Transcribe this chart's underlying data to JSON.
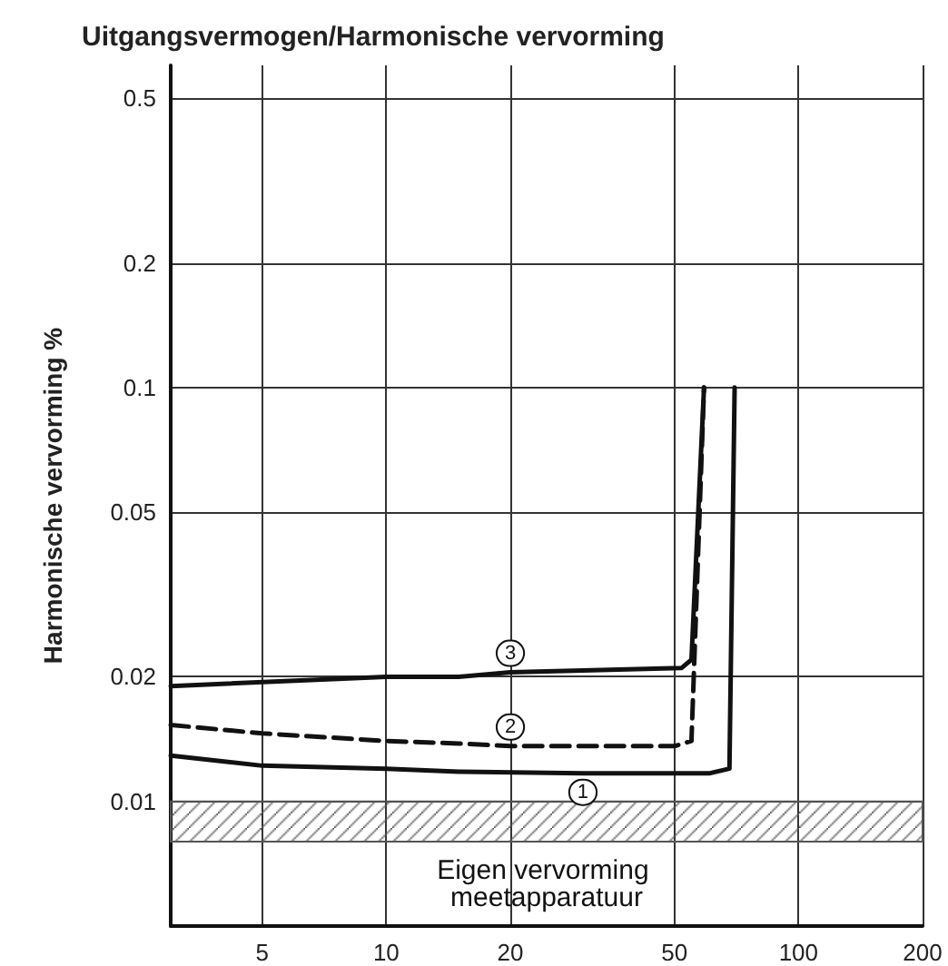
{
  "chart_data": {
    "type": "line",
    "title": "Uitgangsvermogen/Harmonische vervorming",
    "ylabel": "Harmonische vervorming %",
    "log": "xy",
    "xlim": [
      3,
      200
    ],
    "xticks": [
      5,
      10,
      20,
      50,
      100,
      200
    ],
    "ylim": [
      0.005,
      0.6
    ],
    "yticks": [
      0.5,
      0.2,
      0.1,
      0.05,
      0.02,
      0.01
    ],
    "grid": true,
    "marker": "none",
    "legend": false,
    "series": [
      {
        "name": "1",
        "color": "#111111",
        "line_style": "solid",
        "x": [
          3,
          5,
          10,
          15,
          30,
          61,
          68,
          70
        ],
        "values": [
          0.0129,
          0.0122,
          0.012,
          0.0118,
          0.0117,
          0.0117,
          0.012,
          0.1
        ]
      },
      {
        "name": "2",
        "color": "#111111",
        "line_style": "dashed",
        "x": [
          3,
          5,
          10,
          15,
          20,
          50,
          55,
          59
        ],
        "values": [
          0.0153,
          0.0146,
          0.014,
          0.0138,
          0.0136,
          0.0136,
          0.014,
          0.1
        ]
      },
      {
        "name": "3",
        "color": "#111111",
        "line_style": "solid",
        "x": [
          3,
          10,
          15,
          20,
          52,
          55,
          59
        ],
        "values": [
          0.019,
          0.02,
          0.02,
          0.0205,
          0.021,
          0.022,
          0.1
        ]
      }
    ],
    "bands": [
      {
        "axis": "y",
        "from": 0.008,
        "to": 0.01,
        "label": "Eigen vervorming meetapparatuur",
        "color": "#555555"
      }
    ]
  }
}
